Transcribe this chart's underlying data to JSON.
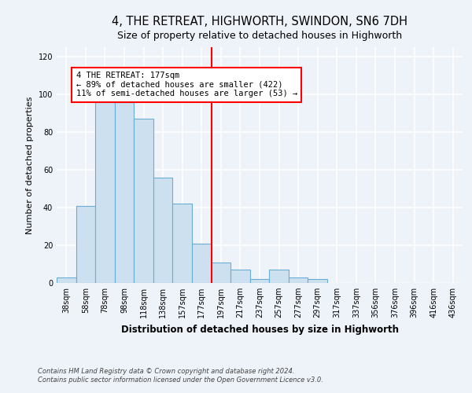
{
  "title": "4, THE RETREAT, HIGHWORTH, SWINDON, SN6 7DH",
  "subtitle": "Size of property relative to detached houses in Highworth",
  "xlabel": "Distribution of detached houses by size in Highworth",
  "ylabel": "Number of detached properties",
  "bar_labels": [
    "38sqm",
    "58sqm",
    "78sqm",
    "98sqm",
    "118sqm",
    "138sqm",
    "157sqm",
    "177sqm",
    "197sqm",
    "217sqm",
    "237sqm",
    "257sqm",
    "277sqm",
    "297sqm",
    "317sqm",
    "337sqm",
    "356sqm",
    "376sqm",
    "396sqm",
    "416sqm",
    "436sqm"
  ],
  "bar_values": [
    3,
    41,
    100,
    96,
    87,
    56,
    42,
    21,
    11,
    7,
    2,
    7,
    3,
    2,
    0,
    0,
    0,
    0,
    0,
    0,
    0
  ],
  "bar_color": "#cce0f0",
  "bar_edge_color": "#6aaed6",
  "vline_x": 7.5,
  "vline_color": "red",
  "annotation_text": "4 THE RETREAT: 177sqm\n← 89% of detached houses are smaller (422)\n11% of semi-detached houses are larger (53) →",
  "annotation_box_color": "white",
  "annotation_box_edge_color": "red",
  "ylim": [
    0,
    125
  ],
  "yticks": [
    0,
    20,
    40,
    60,
    80,
    100,
    120
  ],
  "footer_line1": "Contains HM Land Registry data © Crown copyright and database right 2024.",
  "footer_line2": "Contains public sector information licensed under the Open Government Licence v3.0.",
  "bg_color": "#eef2f9",
  "grid_color": "white",
  "title_fontsize": 10.5,
  "subtitle_fontsize": 9,
  "tick_fontsize": 7,
  "ylabel_fontsize": 8,
  "xlabel_fontsize": 8.5,
  "annotation_fontsize": 7.5,
  "footer_fontsize": 6
}
